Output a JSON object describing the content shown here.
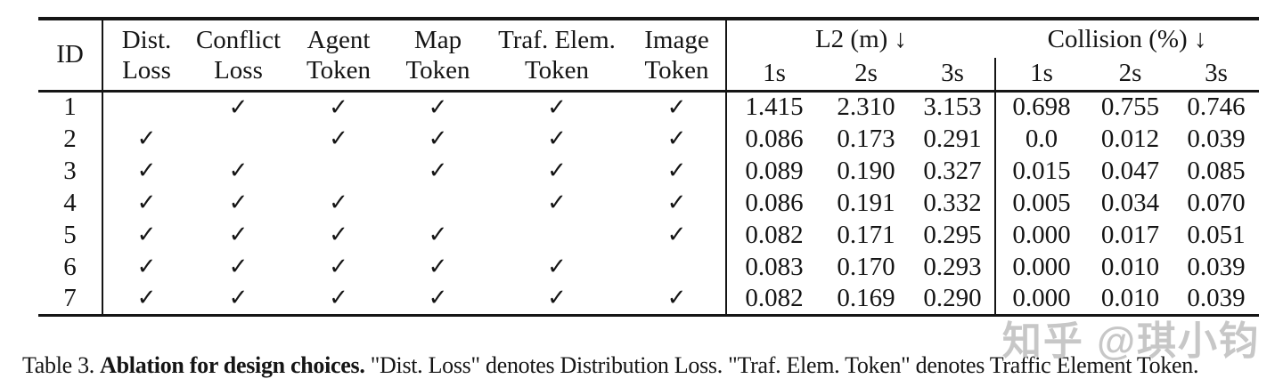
{
  "table": {
    "check_glyph": "✓",
    "columns": {
      "id": "ID",
      "toggles": [
        {
          "line1": "Dist.",
          "line2": "Loss"
        },
        {
          "line1": "Conflict",
          "line2": "Loss"
        },
        {
          "line1": "Agent",
          "line2": "Token"
        },
        {
          "line1": "Map",
          "line2": "Token"
        },
        {
          "line1": "Traf. Elem.",
          "line2": "Token"
        },
        {
          "line1": "Image",
          "line2": "Token"
        }
      ],
      "groups": [
        {
          "label": "L2 (m) ↓",
          "subs": [
            "1s",
            "2s",
            "3s"
          ]
        },
        {
          "label": "Collision (%) ↓",
          "subs": [
            "1s",
            "2s",
            "3s"
          ]
        }
      ]
    },
    "rows": [
      {
        "id": "1",
        "checks": [
          false,
          true,
          true,
          true,
          true,
          true
        ],
        "l2": [
          "1.415",
          "2.310",
          "3.153"
        ],
        "collision": [
          "0.698",
          "0.755",
          "0.746"
        ]
      },
      {
        "id": "2",
        "checks": [
          true,
          false,
          true,
          true,
          true,
          true
        ],
        "l2": [
          "0.086",
          "0.173",
          "0.291"
        ],
        "collision": [
          "0.0",
          "0.012",
          "0.039"
        ]
      },
      {
        "id": "3",
        "checks": [
          true,
          true,
          false,
          true,
          true,
          true
        ],
        "l2": [
          "0.089",
          "0.190",
          "0.327"
        ],
        "collision": [
          "0.015",
          "0.047",
          "0.085"
        ]
      },
      {
        "id": "4",
        "checks": [
          true,
          true,
          true,
          false,
          true,
          true
        ],
        "l2": [
          "0.086",
          "0.191",
          "0.332"
        ],
        "collision": [
          "0.005",
          "0.034",
          "0.070"
        ]
      },
      {
        "id": "5",
        "checks": [
          true,
          true,
          true,
          true,
          false,
          true
        ],
        "l2": [
          "0.082",
          "0.171",
          "0.295"
        ],
        "collision": [
          "0.000",
          "0.017",
          "0.051"
        ]
      },
      {
        "id": "6",
        "checks": [
          true,
          true,
          true,
          true,
          true,
          false
        ],
        "l2": [
          "0.083",
          "0.170",
          "0.293"
        ],
        "collision": [
          "0.000",
          "0.010",
          "0.039"
        ]
      },
      {
        "id": "7",
        "checks": [
          true,
          true,
          true,
          true,
          true,
          true
        ],
        "l2": [
          "0.082",
          "0.169",
          "0.290"
        ],
        "collision": [
          "0.000",
          "0.010",
          "0.039"
        ]
      }
    ]
  },
  "caption": {
    "prefix": "Table 3. ",
    "bold": "Ablation for design choices.",
    "rest": " \"Dist. Loss\" denotes Distribution Loss. \"Traf. Elem. Token\" denotes Traffic Element Token."
  },
  "watermark": "知乎 @琪小钧",
  "colors": {
    "text": "#151515",
    "rule": "#151515",
    "watermark": "#c7c7c7",
    "background": "#ffffff"
  }
}
